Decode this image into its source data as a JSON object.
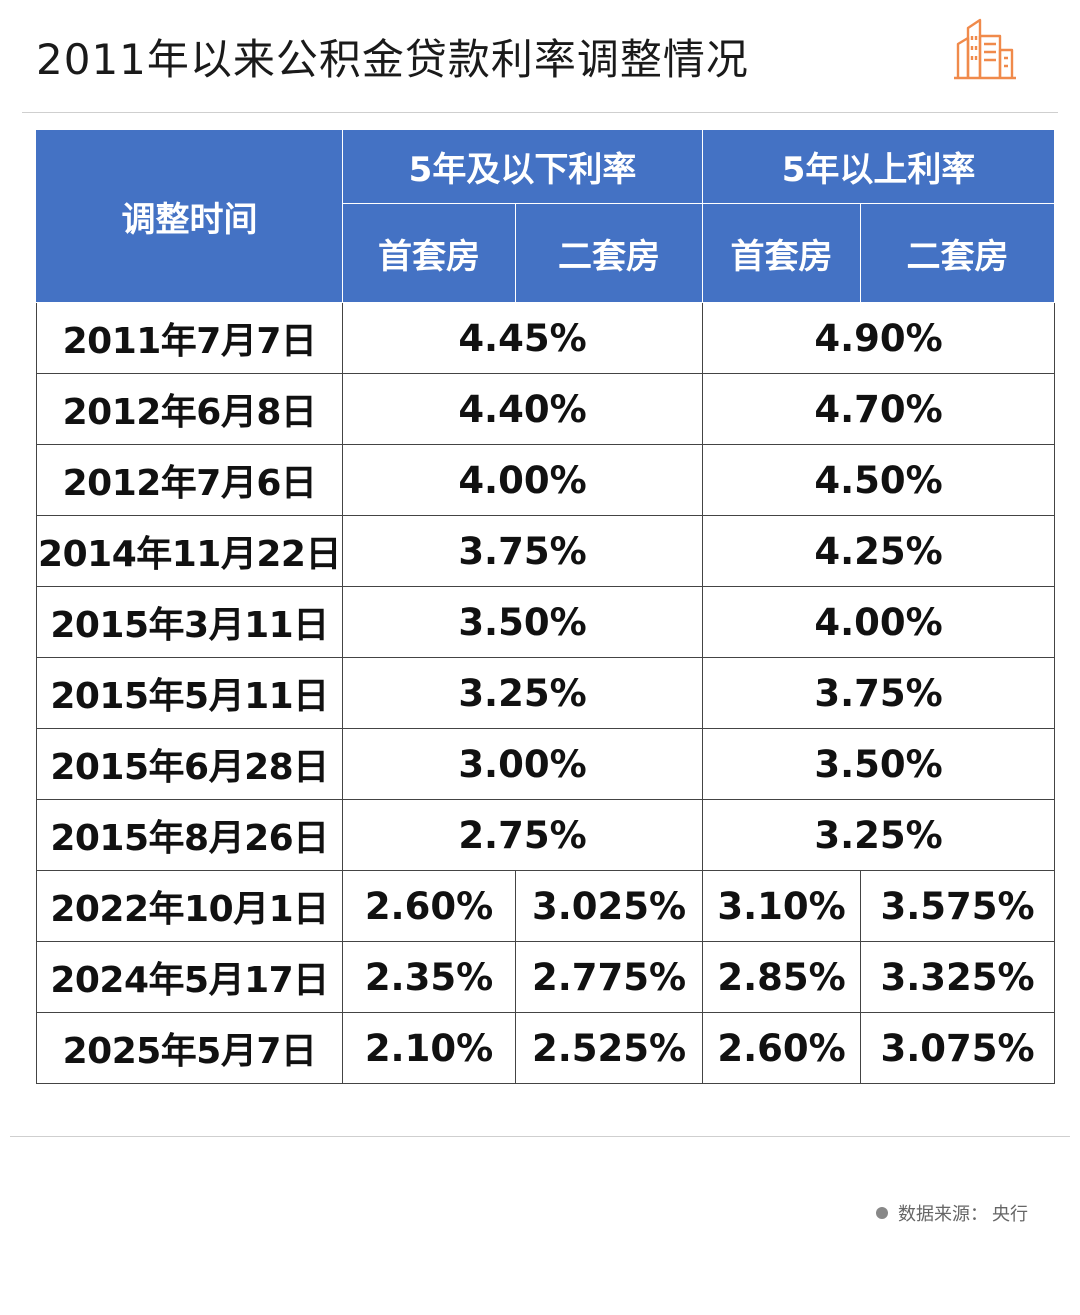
{
  "title": "2011年以来公积金贷款利率调整情况",
  "colors": {
    "header": "#4472c4",
    "accent_logo": "#f08a4b"
  },
  "logo_icon": "building-icon",
  "chart_data": {
    "type": "table",
    "headers": {
      "date": "调整时间",
      "group_short": "5年及以下利率",
      "group_long": "5年以上利率",
      "first_home": "首套房",
      "second_home": "二套房"
    },
    "rows": [
      {
        "date": "2011年7月7日",
        "short": "4.45%",
        "long": "4.90%"
      },
      {
        "date": "2012年6月8日",
        "short": "4.40%",
        "long": "4.70%"
      },
      {
        "date": "2012年7月6日",
        "short": "4.00%",
        "long": "4.50%"
      },
      {
        "date": "2014年11月22日",
        "short": "3.75%",
        "long": "4.25%"
      },
      {
        "date": "2015年3月11日",
        "short": "3.50%",
        "long": "4.00%"
      },
      {
        "date": "2015年5月11日",
        "short": "3.25%",
        "long": "3.75%"
      },
      {
        "date": "2015年6月28日",
        "short": "3.00%",
        "long": "3.50%"
      },
      {
        "date": "2015年8月26日",
        "short": "2.75%",
        "long": "3.25%"
      }
    ],
    "split_rows": [
      {
        "date": "2022年10月1日",
        "short_first": "2.60%",
        "short_second": "3.025%",
        "long_first": "3.10%",
        "long_second": "3.575%"
      },
      {
        "date": "2024年5月17日",
        "short_first": "2.35%",
        "short_second": "2.775%",
        "long_first": "2.85%",
        "long_second": "3.325%"
      },
      {
        "date": "2025年5月7日",
        "short_first": "2.10%",
        "short_second": "2.525%",
        "long_first": "2.60%",
        "long_second": "3.075%"
      }
    ]
  },
  "source": {
    "label": "数据来源：",
    "value": "央行"
  }
}
